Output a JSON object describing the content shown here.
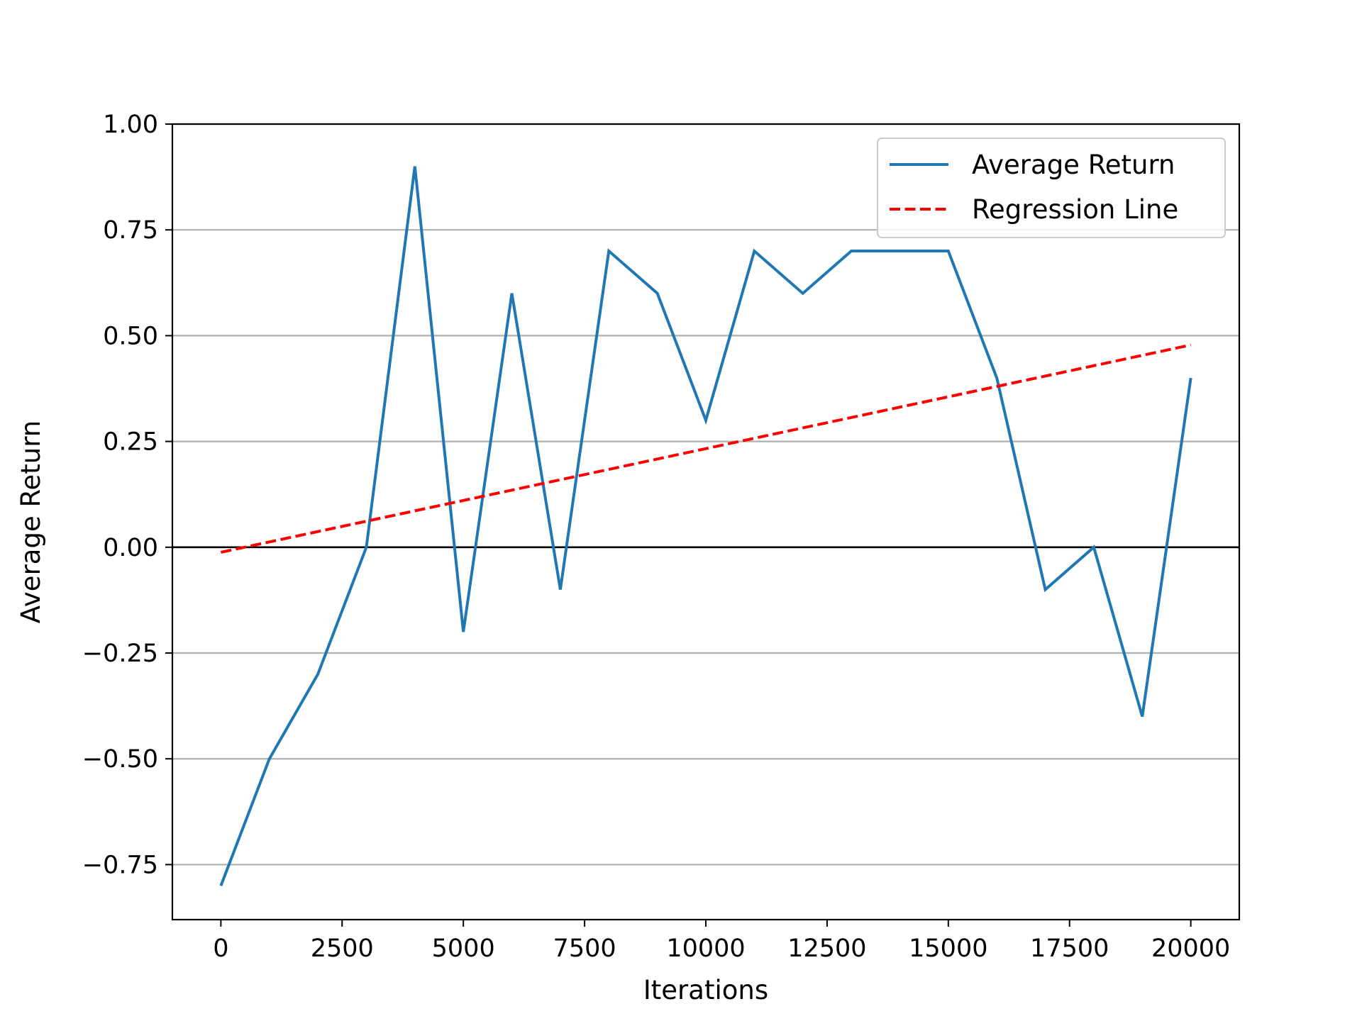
{
  "chart_data": {
    "type": "line",
    "title": "",
    "xlabel": "Iterations",
    "ylabel": "Average Return",
    "xlim": [
      -1000,
      21000
    ],
    "ylim": [
      -0.88,
      1.0
    ],
    "x_ticks": [
      0,
      2500,
      5000,
      7500,
      10000,
      12500,
      15000,
      17500,
      20000
    ],
    "x_tick_labels": [
      "0",
      "2500",
      "5000",
      "7500",
      "10000",
      "12500",
      "15000",
      "17500",
      "20000"
    ],
    "y_ticks": [
      -0.75,
      -0.5,
      -0.25,
      0.0,
      0.25,
      0.5,
      0.75,
      1.0
    ],
    "y_tick_labels": [
      "−0.75",
      "−0.50",
      "−0.25",
      "0.00",
      "0.25",
      "0.50",
      "0.75",
      "1.00"
    ],
    "grid": "y-major",
    "zero_line": true,
    "legend_position": "top-right",
    "series": [
      {
        "name": "Average Return",
        "style": "solid",
        "color": "#1f77b4",
        "x": [
          0,
          1000,
          2000,
          3000,
          4000,
          5000,
          6000,
          7000,
          8000,
          9000,
          10000,
          11000,
          12000,
          13000,
          14000,
          15000,
          16000,
          17000,
          18000,
          19000,
          20000
        ],
        "y": [
          -0.8,
          -0.5,
          -0.3,
          0.0,
          0.9,
          -0.2,
          0.6,
          -0.1,
          0.7,
          0.6,
          0.3,
          0.7,
          0.6,
          0.7,
          0.7,
          0.7,
          0.4,
          -0.1,
          0.0,
          -0.4,
          0.4
        ]
      },
      {
        "name": "Regression Line",
        "style": "dashed",
        "color": "#ff0000",
        "x": [
          0,
          20000
        ],
        "y": [
          -0.012,
          0.478
        ]
      }
    ]
  }
}
